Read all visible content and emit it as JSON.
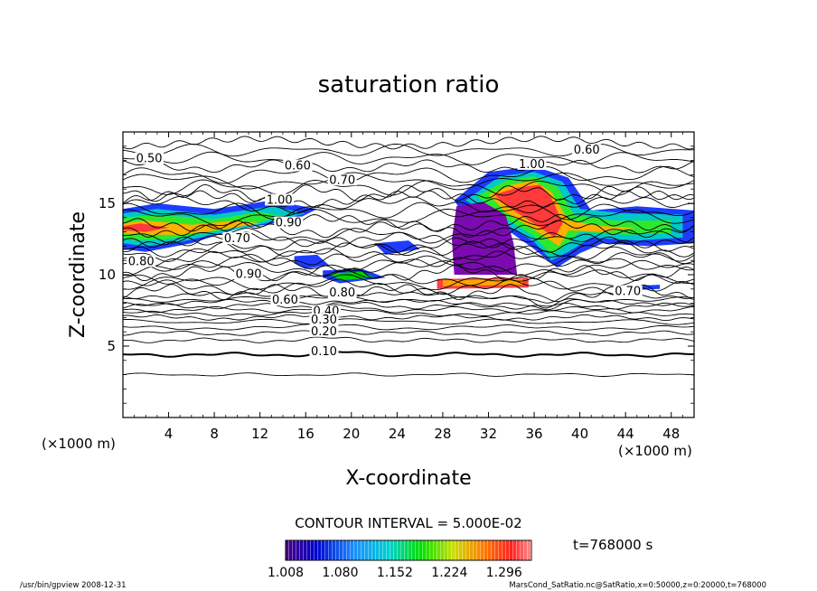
{
  "chart_data": {
    "type": "contour",
    "title": "saturation ratio",
    "xlabel": "X-coordinate",
    "ylabel": "Z-coordinate",
    "x_unit_label": "(×1000 m)",
    "z_unit_label": "(×1000 m)",
    "xlim": [
      0,
      50
    ],
    "ylim": [
      0,
      20
    ],
    "x_ticks": [
      4,
      8,
      12,
      16,
      20,
      24,
      28,
      32,
      36,
      40,
      44,
      48
    ],
    "y_ticks": [
      5,
      10,
      15
    ],
    "contour_interval_text": "CONTOUR INTERVAL = 5.000E-02",
    "time_label": "t=768000 s",
    "colorbar": {
      "min": 1.008,
      "max": 1.332,
      "ticks": [
        "1.008",
        "1.080",
        "1.152",
        "1.224",
        "1.296"
      ]
    },
    "contour_labels": [
      {
        "text": "0.50",
        "x": 2.3,
        "z": 18.0
      },
      {
        "text": "0.60",
        "x": 15.3,
        "z": 17.5
      },
      {
        "text": "0.70",
        "x": 19.2,
        "z": 16.5
      },
      {
        "text": "1.00",
        "x": 35.8,
        "z": 17.6
      },
      {
        "text": "0.60",
        "x": 40.6,
        "z": 18.6
      },
      {
        "text": "1.00",
        "x": 13.7,
        "z": 15.1
      },
      {
        "text": "0.90",
        "x": 14.5,
        "z": 13.5
      },
      {
        "text": "0.70",
        "x": 10.0,
        "z": 12.4
      },
      {
        "text": "0.80",
        "x": 1.6,
        "z": 10.8
      },
      {
        "text": "0.90",
        "x": 11.0,
        "z": 9.9
      },
      {
        "text": "0.60",
        "x": 14.2,
        "z": 8.1
      },
      {
        "text": "0.80",
        "x": 19.2,
        "z": 8.6
      },
      {
        "text": "0.40",
        "x": 17.8,
        "z": 7.3
      },
      {
        "text": "0.30",
        "x": 17.6,
        "z": 6.7
      },
      {
        "text": "0.20",
        "x": 17.6,
        "z": 5.9
      },
      {
        "text": "0.10",
        "x": 17.6,
        "z": 4.5
      },
      {
        "text": "0.70",
        "x": 44.2,
        "z": 8.7
      }
    ]
  },
  "footer": {
    "left": "/usr/bin/gpview   2008-12-31",
    "right": "MarsCond_SatRatio.nc@SatRatio,x=0:50000,z=0:20000,t=768000"
  }
}
